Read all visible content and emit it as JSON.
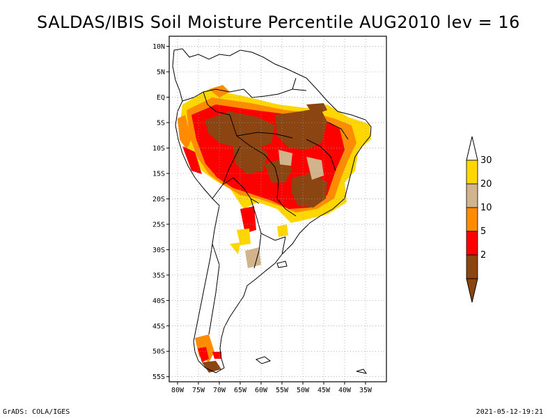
{
  "title": "SALDAS/IBIS Soil Moisture Percentile AUG2010 lev = 16",
  "footer": {
    "left": "GrADS: COLA/IGES",
    "right": "2021-05-12-19:21"
  },
  "map": {
    "lat_range": [
      -56,
      12
    ],
    "lon_range": [
      -82,
      -30
    ],
    "lat_ticks": [
      {
        "value": 10,
        "label": "10N"
      },
      {
        "value": 5,
        "label": "5N"
      },
      {
        "value": 0,
        "label": "EQ"
      },
      {
        "value": -5,
        "label": "5S"
      },
      {
        "value": -10,
        "label": "10S"
      },
      {
        "value": -15,
        "label": "15S"
      },
      {
        "value": -20,
        "label": "20S"
      },
      {
        "value": -25,
        "label": "25S"
      },
      {
        "value": -30,
        "label": "30S"
      },
      {
        "value": -35,
        "label": "35S"
      },
      {
        "value": -40,
        "label": "40S"
      },
      {
        "value": -45,
        "label": "45S"
      },
      {
        "value": -50,
        "label": "50S"
      },
      {
        "value": -55,
        "label": "55S"
      }
    ],
    "lon_ticks": [
      {
        "value": -80,
        "label": "80W"
      },
      {
        "value": -75,
        "label": "75W"
      },
      {
        "value": -70,
        "label": "70W"
      },
      {
        "value": -65,
        "label": "65W"
      },
      {
        "value": -60,
        "label": "60W"
      },
      {
        "value": -55,
        "label": "55W"
      },
      {
        "value": -50,
        "label": "50W"
      },
      {
        "value": -45,
        "label": "45W"
      },
      {
        "value": -40,
        "label": "40W"
      },
      {
        "value": -35,
        "label": "35W"
      }
    ],
    "grid": true
  },
  "colorbar": {
    "levels": [
      {
        "label": "2",
        "color": "#8b4513"
      },
      {
        "label": "5",
        "color": "#ff0000"
      },
      {
        "label": "10",
        "color": "#ff8c00"
      },
      {
        "label": "20",
        "color": "#d2b48c"
      },
      {
        "label": "30",
        "color": "#ffd700"
      }
    ],
    "bottom_arrow_color": "#8b4513",
    "top_arrow_color": "#ffffff"
  }
}
